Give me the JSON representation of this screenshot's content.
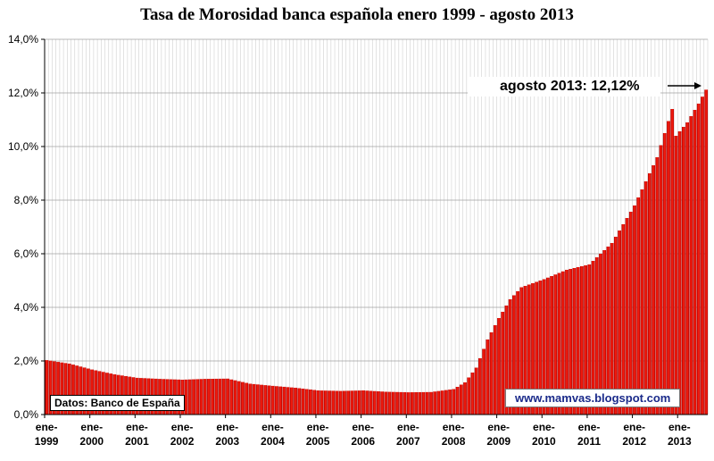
{
  "chart_data": {
    "type": "bar",
    "title": "Tasa de Morosidad banca española enero 1999 - agosto 2013",
    "xlabel": "",
    "ylabel": "",
    "ylim": [
      0,
      14
    ],
    "yticks": [
      "0,0%",
      "2,0%",
      "4,0%",
      "6,0%",
      "8,0%",
      "10,0%",
      "12,0%",
      "14,0%"
    ],
    "xticks": [
      {
        "line1": "ene-",
        "line2": "1999"
      },
      {
        "line1": "ene-",
        "line2": "2000"
      },
      {
        "line1": "ene-",
        "line2": "2001"
      },
      {
        "line1": "ene-",
        "line2": "2002"
      },
      {
        "line1": "ene-",
        "line2": "2003"
      },
      {
        "line1": "ene-",
        "line2": "2004"
      },
      {
        "line1": "ene-",
        "line2": "2005"
      },
      {
        "line1": "ene-",
        "line2": "2006"
      },
      {
        "line1": "ene-",
        "line2": "2007"
      },
      {
        "line1": "ene-",
        "line2": "2008"
      },
      {
        "line1": "ene-",
        "line2": "2009"
      },
      {
        "line1": "ene-",
        "line2": "2010"
      },
      {
        "line1": "ene-",
        "line2": "2011"
      },
      {
        "line1": "ene-",
        "line2": "2012"
      },
      {
        "line1": "ene-",
        "line2": "2013"
      }
    ],
    "x_start": "1999-01",
    "x_end": "2013-08",
    "keypoints": [
      {
        "date": "1999-01",
        "value": 2.03
      },
      {
        "date": "1999-07",
        "value": 1.9
      },
      {
        "date": "2000-01",
        "value": 1.68
      },
      {
        "date": "2000-07",
        "value": 1.5
      },
      {
        "date": "2001-01",
        "value": 1.37
      },
      {
        "date": "2001-07",
        "value": 1.33
      },
      {
        "date": "2002-01",
        "value": 1.3
      },
      {
        "date": "2002-07",
        "value": 1.33
      },
      {
        "date": "2003-01",
        "value": 1.34
      },
      {
        "date": "2003-07",
        "value": 1.15
      },
      {
        "date": "2004-01",
        "value": 1.07
      },
      {
        "date": "2004-07",
        "value": 1.0
      },
      {
        "date": "2005-01",
        "value": 0.9
      },
      {
        "date": "2005-07",
        "value": 0.88
      },
      {
        "date": "2006-01",
        "value": 0.9
      },
      {
        "date": "2006-07",
        "value": 0.85
      },
      {
        "date": "2007-01",
        "value": 0.83
      },
      {
        "date": "2007-07",
        "value": 0.84
      },
      {
        "date": "2008-01",
        "value": 0.95
      },
      {
        "date": "2008-04",
        "value": 1.2
      },
      {
        "date": "2008-07",
        "value": 1.75
      },
      {
        "date": "2008-10",
        "value": 2.8
      },
      {
        "date": "2009-01",
        "value": 3.6
      },
      {
        "date": "2009-04",
        "value": 4.3
      },
      {
        "date": "2009-07",
        "value": 4.75
      },
      {
        "date": "2010-01",
        "value": 5.05
      },
      {
        "date": "2010-07",
        "value": 5.4
      },
      {
        "date": "2011-01",
        "value": 5.6
      },
      {
        "date": "2011-07",
        "value": 6.4
      },
      {
        "date": "2012-01",
        "value": 7.8
      },
      {
        "date": "2012-07",
        "value": 9.6
      },
      {
        "date": "2012-11",
        "value": 11.4
      },
      {
        "date": "2012-12",
        "value": 10.4
      },
      {
        "date": "2013-03",
        "value": 10.9
      },
      {
        "date": "2013-06",
        "value": 11.6
      },
      {
        "date": "2013-08",
        "value": 12.12
      }
    ],
    "series": [
      {
        "color": "#ff1a0a"
      }
    ],
    "grid": true,
    "annotation": "agosto 2013: 12,12%",
    "source": "Datos: Banco de España",
    "website": "www.mamvas.blogspot.com"
  }
}
